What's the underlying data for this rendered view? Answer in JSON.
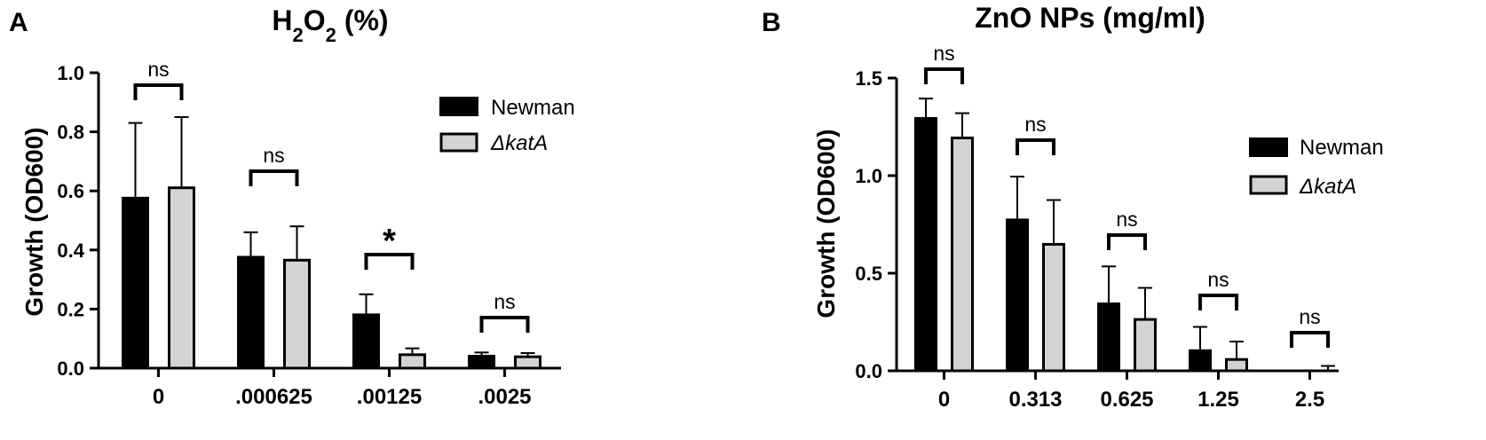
{
  "chart_data": [
    {
      "panel": "A",
      "type": "bar",
      "title_base": "H",
      "title_sub1": "2",
      "title_mid": "O",
      "title_sub2": "2",
      "title_tail": " (%)",
      "ylabel": "Growth (OD600)",
      "ylim": [
        0,
        1.0
      ],
      "yticks": [
        0.0,
        0.2,
        0.4,
        0.6,
        0.8,
        1.0
      ],
      "ytick_labels": [
        "0.0",
        "0.2",
        "0.4",
        "0.6",
        "0.8",
        "1.0"
      ],
      "categories": [
        "0",
        ".000625",
        ".00125",
        ".0025"
      ],
      "series": [
        {
          "name": "Newman",
          "color": "#000000",
          "values": [
            0.58,
            0.38,
            0.185,
            0.045
          ],
          "errors": [
            0.25,
            0.08,
            0.065,
            0.008
          ]
        },
        {
          "name": "ΔkatA",
          "color": "#d3d3d3",
          "values": [
            0.615,
            0.37,
            0.05,
            0.043
          ],
          "errors": [
            0.235,
            0.11,
            0.017,
            0.008
          ]
        }
      ],
      "significance": [
        "ns",
        "ns",
        "*",
        "ns"
      ],
      "legend_position": "top-right",
      "grid": false
    },
    {
      "panel": "B",
      "type": "bar",
      "title": "ZnO NPs (mg/ml)",
      "ylabel": "Growth (OD600)",
      "ylim": [
        0,
        1.5
      ],
      "yticks": [
        0.0,
        0.5,
        1.0,
        1.5
      ],
      "ytick_labels": [
        "0.0",
        "0.5",
        "1.0",
        "1.5"
      ],
      "categories": [
        "0",
        "0.313",
        "0.625",
        "1.25",
        "2.5"
      ],
      "series": [
        {
          "name": "Newman",
          "color": "#000000",
          "values": [
            1.3,
            0.78,
            0.35,
            0.11,
            0.0
          ],
          "errors": [
            0.095,
            0.215,
            0.185,
            0.115,
            0.0
          ]
        },
        {
          "name": "ΔkatA",
          "color": "#d3d3d3",
          "values": [
            1.2,
            0.655,
            0.27,
            0.065,
            0.005
          ],
          "errors": [
            0.12,
            0.22,
            0.155,
            0.085,
            0.02
          ]
        }
      ],
      "significance": [
        "ns",
        "ns",
        "ns",
        "ns",
        "ns"
      ],
      "legend_position": "right",
      "grid": false
    }
  ]
}
